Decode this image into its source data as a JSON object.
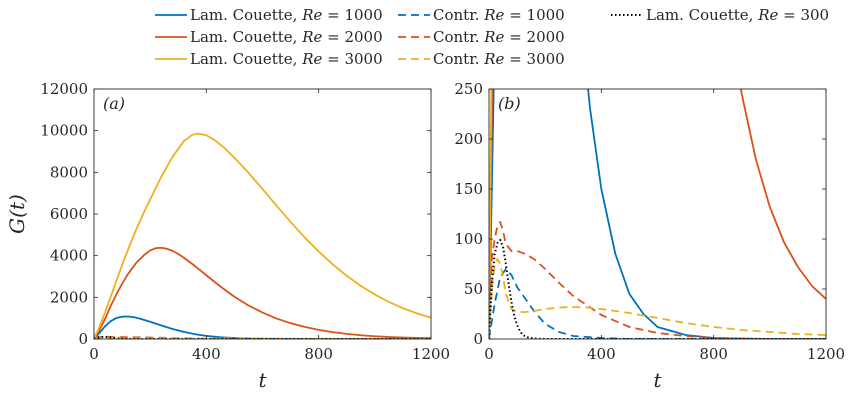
{
  "chart_data": [
    {
      "type": "line",
      "panel_label": "(a)",
      "xlabel": "t",
      "ylabel": "G(t)",
      "xlim": [
        0,
        1200
      ],
      "ylim": [
        0,
        12000
      ],
      "xticks": [
        0,
        400,
        800,
        1200
      ],
      "yticks": [
        0,
        2000,
        4000,
        6000,
        8000,
        10000,
        12000
      ],
      "grid": false,
      "series": [
        {
          "name": "Lam. Couette, Re = 1000",
          "color": "#0072BD",
          "style": "solid",
          "x": [
            0,
            20,
            40,
            60,
            80,
            100,
            120,
            140,
            160,
            200,
            240,
            280,
            320,
            360,
            400,
            450,
            500,
            550,
            600,
            700,
            800,
            1000,
            1200
          ],
          "y": [
            0,
            300,
            620,
            860,
            1010,
            1070,
            1080,
            1050,
            990,
            830,
            650,
            480,
            340,
            230,
            150,
            85,
            45,
            25,
            12,
            4,
            1,
            0,
            0
          ]
        },
        {
          "name": "Lam. Couette, Re = 2000",
          "color": "#D95319",
          "style": "solid",
          "x": [
            0,
            20,
            40,
            60,
            80,
            100,
            120,
            150,
            180,
            200,
            220,
            240,
            260,
            280,
            300,
            320,
            350,
            380,
            400,
            450,
            500,
            550,
            600,
            650,
            700,
            750,
            800,
            850,
            900,
            950,
            1000,
            1050,
            1100,
            1150,
            1200
          ],
          "y": [
            0,
            450,
            980,
            1600,
            2150,
            2650,
            3100,
            3650,
            4050,
            4250,
            4360,
            4380,
            4330,
            4230,
            4080,
            3900,
            3600,
            3280,
            3060,
            2520,
            2030,
            1610,
            1270,
            980,
            760,
            580,
            440,
            330,
            245,
            180,
            132,
            97,
            72,
            53,
            40
          ]
        },
        {
          "name": "Lam. Couette, Re = 3000",
          "color": "#EDB120",
          "style": "solid",
          "x": [
            0,
            20,
            40,
            60,
            80,
            100,
            120,
            150,
            180,
            200,
            240,
            280,
            320,
            350,
            370,
            400,
            430,
            460,
            500,
            550,
            600,
            650,
            700,
            750,
            800,
            850,
            900,
            950,
            1000,
            1050,
            1100,
            1150,
            1200
          ],
          "y": [
            0,
            600,
            1300,
            2050,
            2800,
            3550,
            4250,
            5250,
            6150,
            6700,
            7800,
            8750,
            9500,
            9800,
            9860,
            9780,
            9550,
            9220,
            8700,
            7980,
            7200,
            6400,
            5620,
            4880,
            4200,
            3580,
            3030,
            2550,
            2140,
            1780,
            1480,
            1230,
            1020
          ]
        },
        {
          "name": "Contr. Re = 1000",
          "color": "#0072BD",
          "style": "dashed",
          "x": [
            0,
            20,
            40,
            60,
            80,
            100,
            130,
            160,
            200,
            250,
            300,
            400,
            500,
            600,
            800,
            1200
          ],
          "y": [
            0,
            35,
            62,
            70,
            64,
            52,
            40,
            28,
            15,
            7,
            3,
            1,
            0,
            0,
            0,
            0
          ]
        },
        {
          "name": "Contr. Re = 2000",
          "color": "#D95319",
          "style": "dashed",
          "x": [
            0,
            10,
            20,
            30,
            40,
            50,
            60,
            80,
            100,
            130,
            160,
            200,
            250,
            300,
            400,
            500,
            600,
            700,
            800,
            900,
            1000,
            1100,
            1200
          ],
          "y": [
            0,
            80,
            100,
            113,
            117,
            108,
            95,
            88,
            88,
            85,
            80,
            70,
            56,
            43,
            24,
            12,
            6,
            3,
            1,
            0,
            0,
            0,
            0
          ]
        },
        {
          "name": "Contr. Re = 3000",
          "color": "#EDB120",
          "style": "dashed",
          "x": [
            0,
            10,
            20,
            30,
            40,
            50,
            60,
            80,
            100,
            130,
            160,
            200,
            250,
            300,
            350,
            400,
            500,
            600,
            700,
            800,
            900,
            1000,
            1100,
            1200
          ],
          "y": [
            0,
            50,
            72,
            80,
            75,
            62,
            45,
            30,
            27,
            27,
            28,
            30,
            31.5,
            32,
            31.5,
            30,
            26,
            21,
            16,
            12,
            9,
            7,
            5,
            4
          ]
        },
        {
          "name": "Lam. Couette, Re = 300",
          "color": "#000000",
          "style": "dotted",
          "x": [
            0,
            10,
            20,
            30,
            40,
            50,
            60,
            70,
            80,
            90,
            100,
            110,
            120,
            140,
            160,
            200,
            1200
          ],
          "y": [
            0,
            55,
            85,
            96,
            99,
            92,
            75,
            55,
            37,
            23,
            14,
            8,
            4,
            1.5,
            0.5,
            0,
            0
          ]
        }
      ]
    },
    {
      "type": "line",
      "panel_label": "(b)",
      "xlabel": "t",
      "xlim": [
        0,
        1200
      ],
      "ylim": [
        0,
        250
      ],
      "xticks": [
        0,
        400,
        800,
        1200
      ],
      "yticks": [
        0,
        50,
        100,
        150,
        200,
        250
      ],
      "grid": false
    }
  ],
  "legend": {
    "placement": "top",
    "entries": [
      {
        "prefix": "Lam. Couette, ",
        "math": "Re",
        "suffix": " = 1000",
        "color": "#0072BD",
        "style": "solid"
      },
      {
        "prefix": "Contr. ",
        "math": "Re",
        "suffix": " = 1000",
        "color": "#0072BD",
        "style": "dashed"
      },
      {
        "prefix": "Lam. Couette, ",
        "math": "Re",
        "suffix": " = 300",
        "color": "#000000",
        "style": "dotted"
      },
      {
        "prefix": "Lam. Couette, ",
        "math": "Re",
        "suffix": " = 2000",
        "color": "#D95319",
        "style": "solid"
      },
      {
        "prefix": "Contr. ",
        "math": "Re",
        "suffix": " = 2000",
        "color": "#D95319",
        "style": "dashed"
      },
      {
        "prefix": "Lam. Couette, ",
        "math": "Re",
        "suffix": " = 3000",
        "color": "#EDB120",
        "style": "solid"
      },
      {
        "prefix": "Contr. ",
        "math": "Re",
        "suffix": " = 3000",
        "color": "#EDB120",
        "style": "dashed"
      }
    ]
  }
}
